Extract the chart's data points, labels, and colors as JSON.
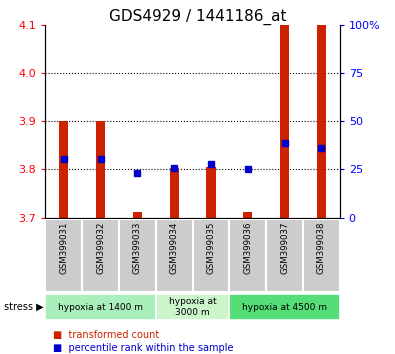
{
  "title": "GDS4929 / 1441186_at",
  "samples": [
    "GSM399031",
    "GSM399032",
    "GSM399033",
    "GSM399034",
    "GSM399035",
    "GSM399036",
    "GSM399037",
    "GSM399038"
  ],
  "red_top": [
    3.9,
    3.9,
    3.712,
    3.803,
    3.805,
    3.712,
    4.1,
    4.1
  ],
  "red_bottom": [
    3.7,
    3.7,
    3.7,
    3.7,
    3.7,
    3.7,
    3.7,
    3.7
  ],
  "blue_y_left": [
    3.822,
    3.822,
    3.793,
    3.803,
    3.812,
    3.802,
    3.855,
    3.845
  ],
  "ylim_left": [
    3.7,
    4.1
  ],
  "ylim_right": [
    0,
    100
  ],
  "yticks_left": [
    3.7,
    3.8,
    3.9,
    4.0,
    4.1
  ],
  "yticks_right": [
    0,
    25,
    50,
    75,
    100
  ],
  "ytick_labels_right": [
    "0",
    "25",
    "50",
    "75",
    "100%"
  ],
  "grid_yvals": [
    3.8,
    3.9,
    4.0
  ],
  "groups": [
    {
      "label": "hypoxia at 1400 m",
      "start": 0,
      "end": 2,
      "color": "#aaeebb"
    },
    {
      "label": "hypoxia at\n3000 m",
      "start": 3,
      "end": 4,
      "color": "#ccf5cc"
    },
    {
      "label": "hypoxia at 4500 m",
      "start": 5,
      "end": 7,
      "color": "#55dd77"
    }
  ],
  "bar_color": "#cc2200",
  "blue_color": "#0000cc",
  "title_fontsize": 11,
  "tick_fontsize": 8,
  "bar_width": 0.25
}
